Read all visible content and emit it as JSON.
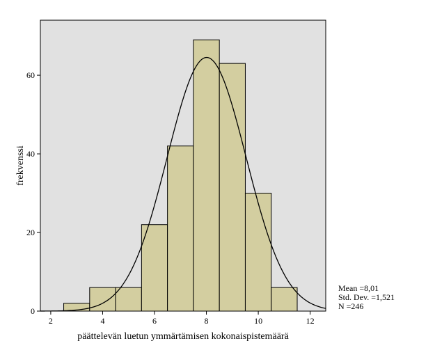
{
  "chart_data": {
    "type": "bar",
    "subtype": "histogram",
    "title": "",
    "xlabel": "päättelevän luetun ymmärtämisen kokonaispistemäärä",
    "ylabel": "frekvenssi",
    "xlim": [
      1.6,
      12.6
    ],
    "ylim": [
      0,
      74
    ],
    "x_ticks": [
      2,
      4,
      6,
      8,
      10,
      12
    ],
    "y_ticks": [
      0,
      20,
      40,
      60
    ],
    "bins": [
      {
        "start": 2.5,
        "end": 3.5,
        "value": 2
      },
      {
        "start": 3.5,
        "end": 4.5,
        "value": 6
      },
      {
        "start": 4.5,
        "end": 5.5,
        "value": 6
      },
      {
        "start": 5.5,
        "end": 6.5,
        "value": 22
      },
      {
        "start": 6.5,
        "end": 7.5,
        "value": 42
      },
      {
        "start": 7.5,
        "end": 8.5,
        "value": 69
      },
      {
        "start": 8.5,
        "end": 9.5,
        "value": 63
      },
      {
        "start": 9.5,
        "end": 10.5,
        "value": 30
      },
      {
        "start": 10.5,
        "end": 11.5,
        "value": 6
      }
    ],
    "normal_curve": {
      "mean": 8.01,
      "sd": 1.521,
      "n": 246,
      "bin_width": 1
    },
    "stats": {
      "mean_label": "Mean =8,01",
      "sd_label": "Std. Dev. =1,521",
      "n_label": "N =246"
    },
    "grid": false,
    "colors": {
      "bar_fill": "#d3cea0",
      "plot_bg": "#e1e1e1",
      "outline": "#000000"
    }
  }
}
